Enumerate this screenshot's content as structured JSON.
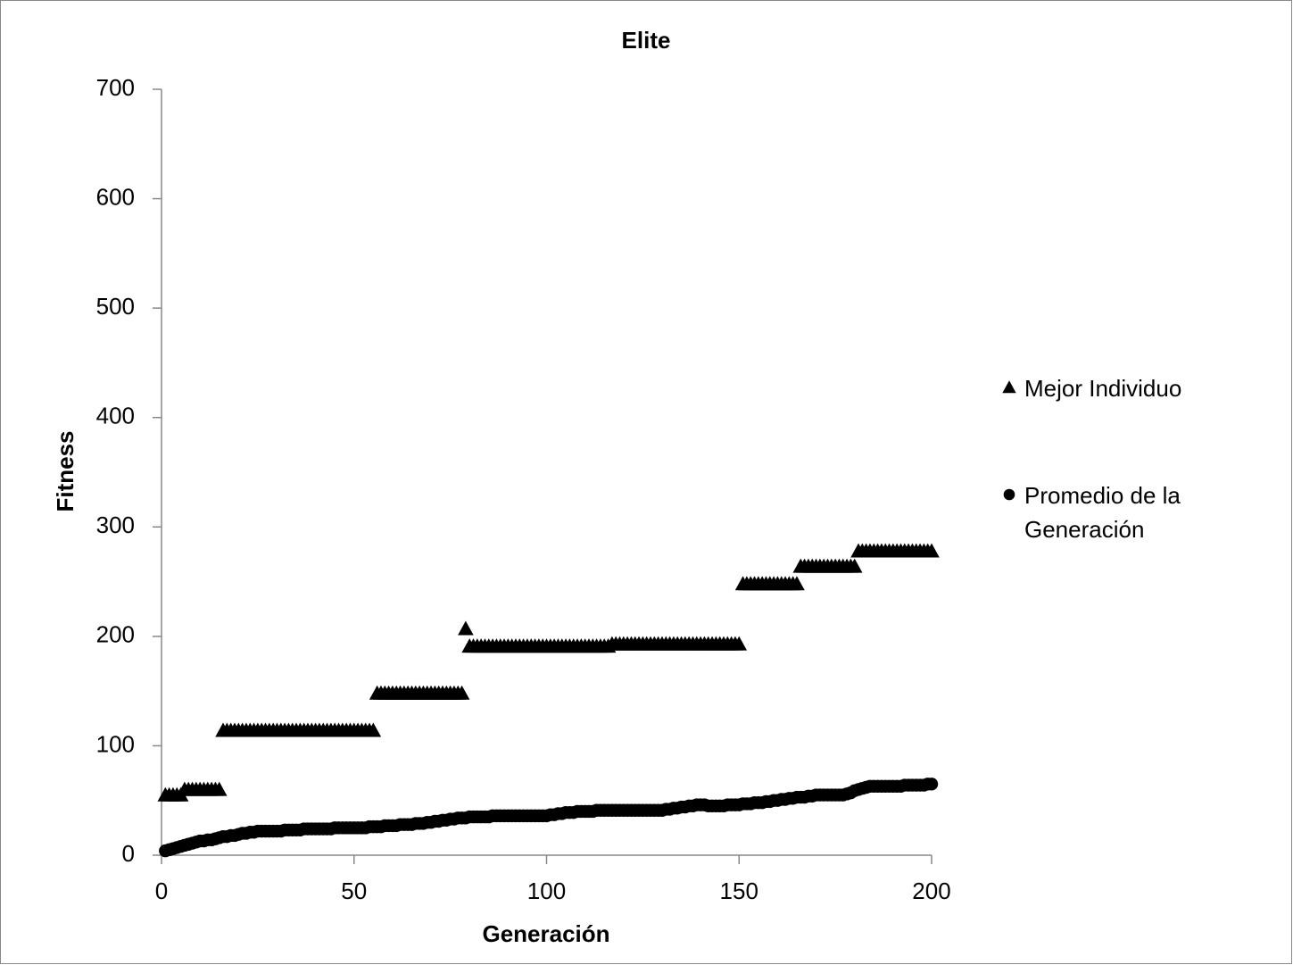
{
  "chart_data": {
    "type": "scatter",
    "title": "Elite",
    "x_label": "Generación",
    "y_label": "Fitness",
    "xlim": [
      0,
      200
    ],
    "xticks": [
      0,
      50,
      100,
      150,
      200
    ],
    "ylim": [
      0,
      700
    ],
    "yticks": [
      0,
      100,
      200,
      300,
      400,
      500,
      600,
      700
    ],
    "grid": false,
    "legend": "right",
    "x": [
      1,
      2,
      3,
      4,
      5,
      6,
      7,
      8,
      9,
      10,
      11,
      12,
      13,
      14,
      15,
      16,
      17,
      18,
      19,
      20,
      21,
      22,
      23,
      24,
      25,
      26,
      27,
      28,
      29,
      30,
      31,
      32,
      33,
      34,
      35,
      36,
      37,
      38,
      39,
      40,
      41,
      42,
      43,
      44,
      45,
      46,
      47,
      48,
      49,
      50,
      51,
      52,
      53,
      54,
      55,
      56,
      57,
      58,
      59,
      60,
      61,
      62,
      63,
      64,
      65,
      66,
      67,
      68,
      69,
      70,
      71,
      72,
      73,
      74,
      75,
      76,
      77,
      78,
      79,
      80,
      81,
      82,
      83,
      84,
      85,
      86,
      87,
      88,
      89,
      90,
      91,
      92,
      93,
      94,
      95,
      96,
      97,
      98,
      99,
      100,
      101,
      102,
      103,
      104,
      105,
      106,
      107,
      108,
      109,
      110,
      111,
      112,
      113,
      114,
      115,
      116,
      117,
      118,
      119,
      120,
      121,
      122,
      123,
      124,
      125,
      126,
      127,
      128,
      129,
      130,
      131,
      132,
      133,
      134,
      135,
      136,
      137,
      138,
      139,
      140,
      141,
      142,
      143,
      144,
      145,
      146,
      147,
      148,
      149,
      150,
      151,
      152,
      153,
      154,
      155,
      156,
      157,
      158,
      159,
      160,
      161,
      162,
      163,
      164,
      165,
      166,
      167,
      168,
      169,
      170,
      171,
      172,
      173,
      174,
      175,
      176,
      177,
      178,
      179,
      180,
      181,
      182,
      183,
      184,
      185,
      186,
      187,
      188,
      189,
      190,
      191,
      192,
      193,
      194,
      195,
      196,
      197,
      198,
      199,
      200
    ],
    "series": [
      {
        "name": "Mejor Individuo",
        "color": "#000000",
        "marker": "triangle",
        "values": [
          55,
          55,
          55,
          55,
          55,
          60,
          60,
          60,
          60,
          60,
          60,
          60,
          60,
          60,
          60,
          114,
          114,
          114,
          114,
          114,
          114,
          114,
          114,
          114,
          114,
          114,
          114,
          114,
          114,
          114,
          114,
          114,
          114,
          114,
          114,
          114,
          114,
          114,
          114,
          114,
          114,
          114,
          114,
          114,
          114,
          114,
          114,
          114,
          114,
          114,
          114,
          114,
          114,
          114,
          114,
          148,
          148,
          148,
          148,
          148,
          148,
          148,
          148,
          148,
          148,
          148,
          148,
          148,
          148,
          148,
          148,
          148,
          148,
          148,
          148,
          148,
          148,
          148,
          207,
          191,
          191,
          191,
          191,
          191,
          191,
          191,
          191,
          191,
          191,
          191,
          191,
          191,
          191,
          191,
          191,
          191,
          191,
          191,
          191,
          191,
          191,
          191,
          191,
          191,
          191,
          191,
          191,
          191,
          191,
          191,
          191,
          191,
          191,
          191,
          191,
          191,
          193,
          193,
          193,
          193,
          193,
          193,
          193,
          193,
          193,
          193,
          193,
          193,
          193,
          193,
          193,
          193,
          193,
          193,
          193,
          193,
          193,
          193,
          193,
          193,
          193,
          193,
          193,
          193,
          193,
          193,
          193,
          193,
          193,
          193,
          248,
          248,
          248,
          248,
          248,
          248,
          248,
          248,
          248,
          248,
          248,
          248,
          248,
          248,
          248,
          264,
          264,
          264,
          264,
          264,
          264,
          264,
          264,
          264,
          264,
          264,
          264,
          264,
          264,
          264,
          278,
          278,
          278,
          278,
          278,
          278,
          278,
          278,
          278,
          278,
          278,
          278,
          278,
          278,
          278,
          278,
          278,
          278,
          278,
          278
        ]
      },
      {
        "name": "Promedio de la Generación",
        "color": "#000000",
        "marker": "circle",
        "values": [
          4,
          5,
          6,
          7,
          8,
          9,
          10,
          11,
          12,
          13,
          13,
          14,
          14,
          15,
          16,
          17,
          17,
          18,
          18,
          19,
          20,
          20,
          21,
          21,
          22,
          22,
          22,
          22,
          22,
          22,
          22,
          23,
          23,
          23,
          23,
          23,
          24,
          24,
          24,
          24,
          24,
          24,
          24,
          24,
          25,
          25,
          25,
          25,
          25,
          25,
          25,
          25,
          25,
          26,
          26,
          26,
          26,
          27,
          27,
          27,
          27,
          28,
          28,
          28,
          28,
          29,
          29,
          29,
          30,
          30,
          31,
          31,
          32,
          32,
          33,
          33,
          34,
          34,
          34,
          35,
          35,
          35,
          35,
          35,
          35,
          36,
          36,
          36,
          36,
          36,
          36,
          36,
          36,
          36,
          36,
          36,
          36,
          36,
          36,
          36,
          37,
          37,
          38,
          38,
          39,
          39,
          39,
          40,
          40,
          40,
          40,
          40,
          41,
          41,
          41,
          41,
          41,
          41,
          41,
          41,
          41,
          41,
          41,
          41,
          41,
          41,
          41,
          41,
          41,
          41,
          42,
          42,
          43,
          43,
          44,
          44,
          45,
          45,
          46,
          46,
          46,
          45,
          45,
          45,
          45,
          45,
          46,
          46,
          46,
          46,
          47,
          47,
          47,
          48,
          48,
          48,
          49,
          49,
          50,
          50,
          51,
          51,
          52,
          52,
          53,
          53,
          53,
          54,
          54,
          55,
          55,
          55,
          55,
          55,
          55,
          55,
          55,
          56,
          57,
          59,
          60,
          61,
          62,
          63,
          63,
          63,
          63,
          63,
          63,
          63,
          63,
          63,
          64,
          64,
          64,
          64,
          64,
          64,
          65,
          65
        ]
      }
    ]
  }
}
